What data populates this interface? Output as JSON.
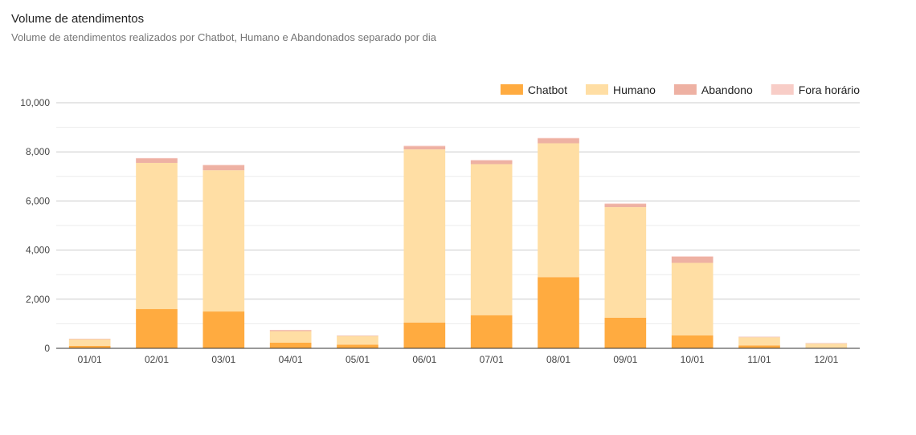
{
  "header": {
    "title": "Volume de atendimentos",
    "subtitle": "Volume de atendimentos realizados por Chatbot, Humano e Abandonados separado por dia"
  },
  "chart_data": {
    "type": "bar",
    "stacked": true,
    "categories": [
      "01/01",
      "02/01",
      "03/01",
      "04/01",
      "05/01",
      "06/01",
      "07/01",
      "08/01",
      "09/01",
      "10/01",
      "11/01",
      "12/01"
    ],
    "series": [
      {
        "name": "Chatbot",
        "color": "#ffab40",
        "values": [
          100,
          1600,
          1500,
          230,
          150,
          1050,
          1350,
          2900,
          1250,
          530,
          120,
          0
        ]
      },
      {
        "name": "Humano",
        "color": "#ffdea4",
        "values": [
          270,
          5950,
          5750,
          470,
          350,
          7050,
          6150,
          5450,
          4500,
          2950,
          330,
          190
        ]
      },
      {
        "name": "Abandono",
        "color": "#eeb1a3",
        "values": [
          20,
          180,
          200,
          40,
          20,
          130,
          150,
          200,
          130,
          250,
          20,
          20
        ]
      },
      {
        "name": "Fora horário",
        "color": "#f8cdc7",
        "values": [
          0,
          20,
          20,
          10,
          0,
          20,
          20,
          20,
          20,
          20,
          0,
          0
        ]
      }
    ],
    "yticks": [
      0,
      2000,
      4000,
      6000,
      8000,
      10000
    ],
    "ytick_labels": [
      "0",
      "2,000",
      "4,000",
      "6,000",
      "8,000",
      "10,000"
    ],
    "ylim": [
      0,
      10000
    ],
    "legend_position": "top-right",
    "grid": true
  }
}
